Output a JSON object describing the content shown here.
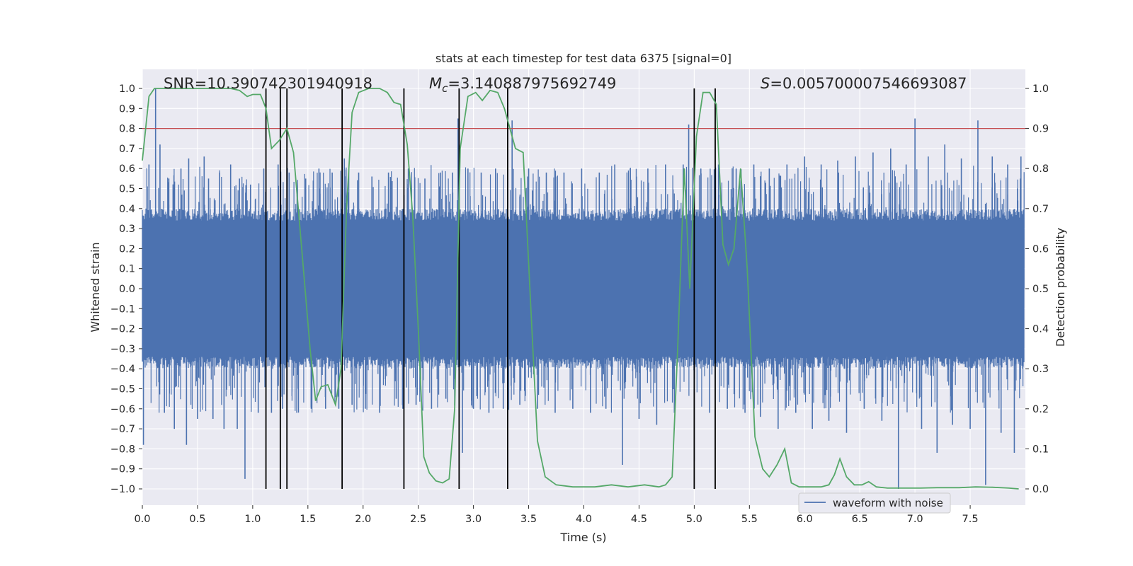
{
  "chart_data": {
    "type": "line",
    "title": "stats at each timestep for test data 6375 [signal=0]",
    "xlabel": "Time (s)",
    "ylabel": "Whitened strain",
    "ylabel_right": "Detection probability",
    "xlim": [
      0,
      8
    ],
    "ylim": [
      -1.1,
      1.1
    ],
    "ylim_right": [
      0,
      1
    ],
    "x_ticks": [
      "0.0",
      "0.5",
      "1.0",
      "1.5",
      "2.0",
      "2.5",
      "3.0",
      "3.5",
      "4.0",
      "4.5",
      "5.0",
      "5.5",
      "6.0",
      "6.5",
      "7.0",
      "7.5"
    ],
    "y_ticks": [
      "−1.0",
      "−0.9",
      "−0.8",
      "−0.7",
      "−0.6",
      "−0.5",
      "−0.4",
      "−0.3",
      "−0.2",
      "−0.1",
      "0.0",
      "0.1",
      "0.2",
      "0.3",
      "0.4",
      "0.5",
      "0.6",
      "0.7",
      "0.8",
      "0.9",
      "1.0"
    ],
    "y_ticks_right": [
      "0.0",
      "0.1",
      "0.2",
      "0.3",
      "0.4",
      "0.5",
      "0.6",
      "0.7",
      "0.8",
      "0.9",
      "1.0"
    ],
    "grid": true,
    "legend_position": "lower-right",
    "colors": {
      "waveform": "#4c72b0",
      "probability": "#55a868",
      "threshold": "#c44e52",
      "markers": "#000000",
      "background": "#eaeaf2"
    },
    "annotations": {
      "snr": "SNR=10.390742301940918",
      "mc_prefix": "M",
      "mc_sub": "c",
      "mc_value": "=3.140887975692749",
      "s_prefix": "S",
      "s_value": "=0.005700007546693087"
    },
    "series": [
      {
        "name": "waveform with noise",
        "kind": "noise",
        "t_range": [
          0,
          7.99
        ],
        "core_amplitude": 0.4,
        "spikes": [
          {
            "t": 0.01,
            "v": -0.78
          },
          {
            "t": 0.06,
            "v": 0.62
          },
          {
            "t": 0.12,
            "v": 1.0
          },
          {
            "t": 0.16,
            "v": 0.72
          },
          {
            "t": 0.2,
            "v": -0.62
          },
          {
            "t": 0.24,
            "v": 0.55
          },
          {
            "t": 0.29,
            "v": -0.7
          },
          {
            "t": 0.35,
            "v": 0.6
          },
          {
            "t": 0.4,
            "v": -0.78
          },
          {
            "t": 0.42,
            "v": 0.65
          },
          {
            "t": 0.5,
            "v": -0.65
          },
          {
            "t": 0.56,
            "v": 0.66
          },
          {
            "t": 0.6,
            "v": 0.55
          },
          {
            "t": 0.64,
            "v": -0.65
          },
          {
            "t": 0.7,
            "v": 0.58
          },
          {
            "t": 0.74,
            "v": -0.7
          },
          {
            "t": 0.8,
            "v": 0.62
          },
          {
            "t": 0.86,
            "v": -0.7
          },
          {
            "t": 0.88,
            "v": 0.55
          },
          {
            "t": 0.93,
            "v": -0.95
          },
          {
            "t": 0.98,
            "v": 0.52
          },
          {
            "t": 1.05,
            "v": -0.62
          },
          {
            "t": 1.1,
            "v": 0.6
          },
          {
            "t": 1.17,
            "v": -0.62
          },
          {
            "t": 1.23,
            "v": 0.62
          },
          {
            "t": 1.27,
            "v": -0.6
          },
          {
            "t": 1.33,
            "v": 0.58
          },
          {
            "t": 1.4,
            "v": -0.62
          },
          {
            "t": 1.48,
            "v": 0.55
          },
          {
            "t": 1.53,
            "v": -0.6
          },
          {
            "t": 1.6,
            "v": 0.6
          },
          {
            "t": 1.66,
            "v": -0.6
          },
          {
            "t": 1.72,
            "v": 0.58
          },
          {
            "t": 1.78,
            "v": -0.6
          },
          {
            "t": 1.83,
            "v": 0.65
          },
          {
            "t": 1.9,
            "v": -0.58
          },
          {
            "t": 1.96,
            "v": 0.58
          },
          {
            "t": 2.02,
            "v": -0.6
          },
          {
            "t": 2.08,
            "v": 0.56
          },
          {
            "t": 2.15,
            "v": -0.62
          },
          {
            "t": 2.23,
            "v": 0.58
          },
          {
            "t": 2.3,
            "v": -0.55
          },
          {
            "t": 2.36,
            "v": -0.6
          },
          {
            "t": 2.41,
            "v": 0.6
          },
          {
            "t": 2.48,
            "v": -0.58
          },
          {
            "t": 2.56,
            "v": 0.55
          },
          {
            "t": 2.62,
            "v": -0.6
          },
          {
            "t": 2.7,
            "v": 0.58
          },
          {
            "t": 2.75,
            "v": -0.55
          },
          {
            "t": 2.81,
            "v": 0.58
          },
          {
            "t": 2.86,
            "v": 0.85
          },
          {
            "t": 2.9,
            "v": -0.82
          },
          {
            "t": 2.95,
            "v": 0.6
          },
          {
            "t": 3.0,
            "v": -0.6
          },
          {
            "t": 3.07,
            "v": 0.58
          },
          {
            "t": 3.14,
            "v": -0.62
          },
          {
            "t": 3.2,
            "v": 0.6
          },
          {
            "t": 3.27,
            "v": -0.6
          },
          {
            "t": 3.35,
            "v": 0.84
          },
          {
            "t": 3.42,
            "v": -0.58
          },
          {
            "t": 3.5,
            "v": 0.6
          },
          {
            "t": 3.58,
            "v": -0.6
          },
          {
            "t": 3.66,
            "v": 0.58
          },
          {
            "t": 3.74,
            "v": -0.62
          },
          {
            "t": 3.82,
            "v": 0.58
          },
          {
            "t": 3.9,
            "v": -0.6
          },
          {
            "t": 3.98,
            "v": 0.6
          },
          {
            "t": 4.06,
            "v": -0.62
          },
          {
            "t": 4.14,
            "v": 0.58
          },
          {
            "t": 4.2,
            "v": -0.6
          },
          {
            "t": 4.28,
            "v": 0.62
          },
          {
            "t": 4.35,
            "v": -0.88
          },
          {
            "t": 4.42,
            "v": 0.6
          },
          {
            "t": 4.5,
            "v": -0.65
          },
          {
            "t": 4.58,
            "v": 0.6
          },
          {
            "t": 4.66,
            "v": -0.68
          },
          {
            "t": 4.74,
            "v": 0.62
          },
          {
            "t": 4.82,
            "v": -0.62
          },
          {
            "t": 4.9,
            "v": 0.62
          },
          {
            "t": 4.95,
            "v": 0.82
          },
          {
            "t": 5.0,
            "v": -0.86
          },
          {
            "t": 5.06,
            "v": 0.6
          },
          {
            "t": 5.14,
            "v": -0.62
          },
          {
            "t": 5.22,
            "v": 0.62
          },
          {
            "t": 5.3,
            "v": -0.6
          },
          {
            "t": 5.38,
            "v": 0.6
          },
          {
            "t": 5.46,
            "v": -0.62
          },
          {
            "t": 5.54,
            "v": 0.62
          },
          {
            "t": 5.6,
            "v": -0.64
          },
          {
            "t": 5.68,
            "v": 0.6
          },
          {
            "t": 5.76,
            "v": -0.7
          },
          {
            "t": 5.84,
            "v": 0.62
          },
          {
            "t": 5.92,
            "v": -0.62
          },
          {
            "t": 6.0,
            "v": 0.66
          },
          {
            "t": 6.07,
            "v": -0.7
          },
          {
            "t": 6.15,
            "v": 0.62
          },
          {
            "t": 6.22,
            "v": -0.66
          },
          {
            "t": 6.3,
            "v": 0.64
          },
          {
            "t": 6.38,
            "v": -0.72
          },
          {
            "t": 6.46,
            "v": 0.66
          },
          {
            "t": 6.54,
            "v": -0.6
          },
          {
            "t": 6.62,
            "v": 0.68
          },
          {
            "t": 6.7,
            "v": -0.66
          },
          {
            "t": 6.78,
            "v": 0.7
          },
          {
            "t": 6.85,
            "v": -1.0
          },
          {
            "t": 6.92,
            "v": 0.62
          },
          {
            "t": 7.0,
            "v": 0.85
          },
          {
            "t": 7.06,
            "v": -0.7
          },
          {
            "t": 7.12,
            "v": 0.66
          },
          {
            "t": 7.2,
            "v": -0.82
          },
          {
            "t": 7.27,
            "v": 0.72
          },
          {
            "t": 7.34,
            "v": -0.68
          },
          {
            "t": 7.42,
            "v": 0.65
          },
          {
            "t": 7.5,
            "v": -0.7
          },
          {
            "t": 7.57,
            "v": 0.84
          },
          {
            "t": 7.64,
            "v": -0.98
          },
          {
            "t": 7.7,
            "v": 0.66
          },
          {
            "t": 7.78,
            "v": -0.72
          },
          {
            "t": 7.84,
            "v": 0.62
          },
          {
            "t": 7.9,
            "v": -0.82
          },
          {
            "t": 7.96,
            "v": 0.66
          }
        ]
      },
      {
        "name": "",
        "kind": "line",
        "axis": "right",
        "x": [
          0.0,
          0.06,
          0.11,
          0.2,
          0.35,
          0.5,
          0.65,
          0.8,
          0.88,
          0.95,
          1.0,
          1.07,
          1.12,
          1.17,
          1.24,
          1.31,
          1.37,
          1.45,
          1.52,
          1.57,
          1.62,
          1.68,
          1.75,
          1.8,
          1.85,
          1.9,
          1.96,
          2.05,
          2.15,
          2.22,
          2.28,
          2.34,
          2.4,
          2.45,
          2.5,
          2.55,
          2.6,
          2.66,
          2.72,
          2.78,
          2.83,
          2.88,
          2.95,
          3.02,
          3.08,
          3.15,
          3.22,
          3.28,
          3.33,
          3.38,
          3.45,
          3.52,
          3.58,
          3.65,
          3.75,
          3.9,
          4.1,
          4.25,
          4.4,
          4.55,
          4.68,
          4.74,
          4.8,
          4.85,
          4.91,
          4.96,
          5.02,
          5.08,
          5.14,
          5.2,
          5.26,
          5.31,
          5.36,
          5.42,
          5.48,
          5.55,
          5.62,
          5.68,
          5.75,
          5.82,
          5.88,
          5.95,
          6.05,
          6.15,
          6.22,
          6.27,
          6.32,
          6.38,
          6.45,
          6.52,
          6.58,
          6.65,
          6.75,
          6.9,
          7.05,
          7.2,
          7.4,
          7.55,
          7.7,
          7.85,
          7.94
        ],
        "y": [
          0.82,
          0.98,
          1.0,
          1.0,
          1.0,
          1.0,
          1.0,
          1.0,
          0.995,
          0.98,
          0.985,
          0.985,
          0.95,
          0.85,
          0.87,
          0.9,
          0.84,
          0.58,
          0.35,
          0.22,
          0.255,
          0.26,
          0.21,
          0.3,
          0.7,
          0.94,
          0.99,
          1.0,
          1.0,
          0.99,
          0.965,
          0.96,
          0.86,
          0.68,
          0.4,
          0.08,
          0.04,
          0.02,
          0.015,
          0.025,
          0.2,
          0.85,
          0.98,
          0.99,
          0.97,
          0.995,
          0.99,
          0.95,
          0.9,
          0.85,
          0.84,
          0.45,
          0.12,
          0.03,
          0.01,
          0.005,
          0.005,
          0.01,
          0.005,
          0.01,
          0.005,
          0.01,
          0.03,
          0.35,
          0.8,
          0.5,
          0.88,
          0.99,
          0.99,
          0.96,
          0.61,
          0.56,
          0.6,
          0.8,
          0.55,
          0.13,
          0.05,
          0.03,
          0.06,
          0.1,
          0.015,
          0.005,
          0.005,
          0.005,
          0.01,
          0.035,
          0.075,
          0.03,
          0.01,
          0.01,
          0.018,
          0.005,
          0.002,
          0.002,
          0.002,
          0.003,
          0.003,
          0.005,
          0.004,
          0.002,
          0.0
        ]
      },
      {
        "name": "",
        "kind": "hline",
        "axis": "right",
        "y": 0.9
      },
      {
        "name": "",
        "kind": "vlines",
        "x": [
          1.12,
          1.25,
          1.31,
          1.81,
          2.37,
          2.87,
          3.31,
          5.0,
          5.19
        ]
      }
    ]
  }
}
